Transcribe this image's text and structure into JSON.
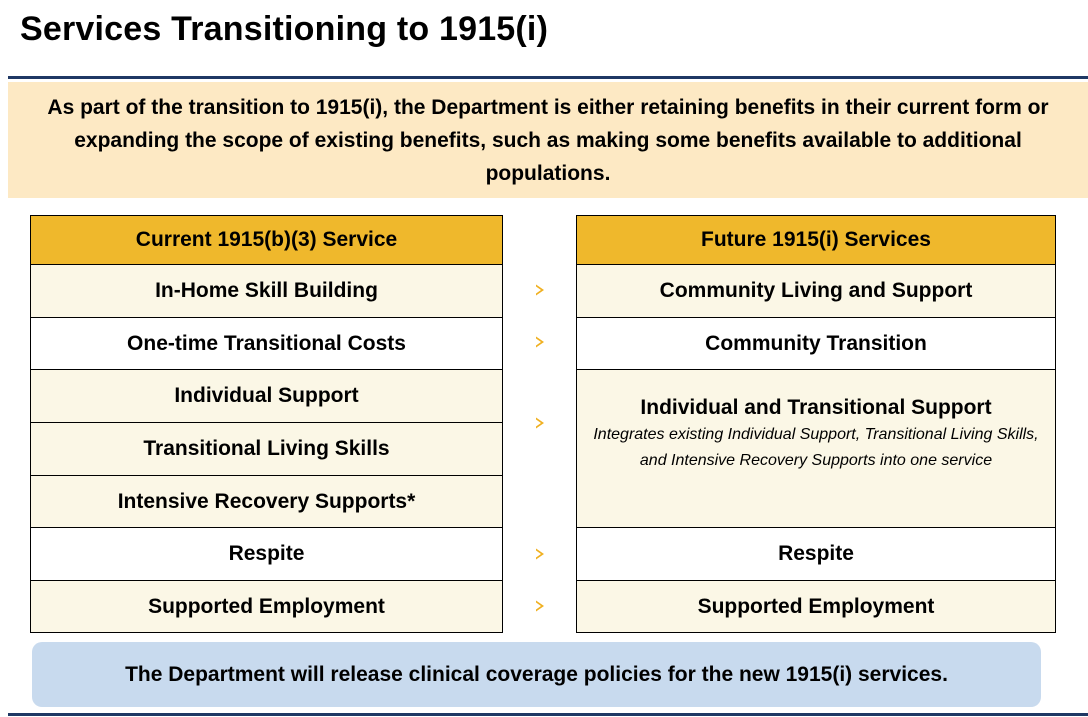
{
  "title": "Services Transitioning to 1915(i)",
  "intro": "As part of the transition to 1915(i), the Department is either retaining benefits in their current form or expanding the scope of existing benefits, such as making some benefits available to additional populations.",
  "current": {
    "header": "Current 1915(b)(3)  Service",
    "rows": [
      "In-Home Skill Building",
      "One-time Transitional Costs",
      "Individual Support",
      "Transitional Living Skills",
      "Intensive Recovery Supports*",
      "Respite",
      "Supported Employment"
    ]
  },
  "future": {
    "header": "Future 1915(i) Services",
    "rows": [
      {
        "title": "Community Living and Support"
      },
      {
        "title": "Community Transition"
      },
      {
        "title": "Individual and Transitional Support",
        "note": "Integrates existing Individual Support, Transitional Living Skills, and Intensive Recovery Supports into one service"
      },
      {
        "title": "Respite"
      },
      {
        "title": "Supported Employment"
      }
    ]
  },
  "footer": "The Department will release clinical coverage policies for the new 1915(i) services.",
  "colors": {
    "header_fill": "#efb82c",
    "row_cream": "#fbf7e6",
    "intro_fill": "#fde9c4",
    "footer_fill": "#c8daee",
    "rule": "#1f3864",
    "arrow": "#f0b020"
  }
}
